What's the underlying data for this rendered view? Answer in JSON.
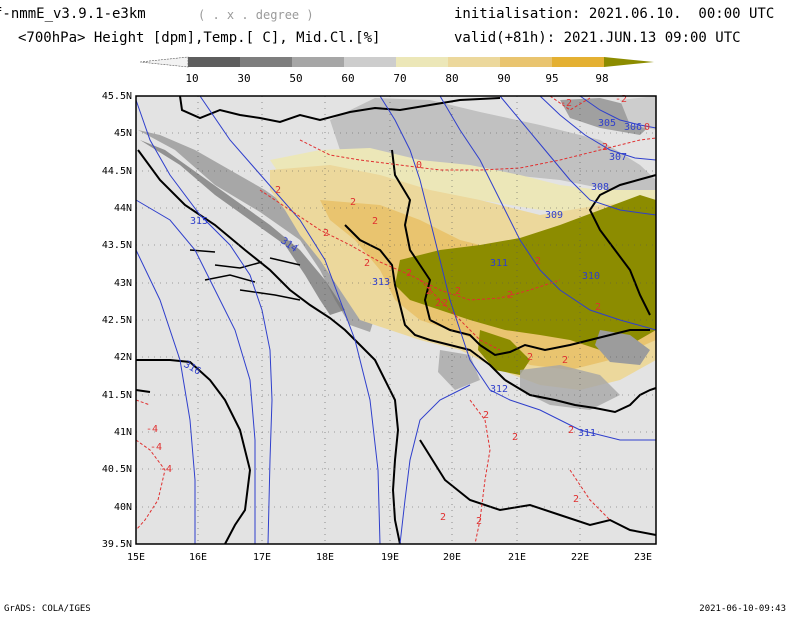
{
  "header": {
    "model": "f-nmmE_v3.9.1-e3km",
    "units": "( . x . degree )",
    "variables": "<700hPa> Height [dpm],Temp.[ C], Mid.Cl.[%]",
    "initialisation": "initialisation: 2021.06.10.  00:00 UTC",
    "valid": "valid(+81h): 2021.JUN.13 09:00 UTC"
  },
  "colorbar": {
    "ticks": [
      "10",
      "30",
      "50",
      "60",
      "70",
      "80",
      "90",
      "95",
      "98"
    ],
    "colors": [
      "#f2f2f2",
      "#5e5e5e",
      "#7e7e7e",
      "#a6a6a6",
      "#cdcdcd",
      "#ece7b8",
      "#ecd89c",
      "#e9c46f",
      "#e4b032",
      "#8c8c00"
    ]
  },
  "map": {
    "lat_labels": [
      "45.5N",
      "45N",
      "44.5N",
      "44N",
      "43.5N",
      "43N",
      "42.5N",
      "42N",
      "41.5N",
      "41N",
      "40.5N",
      "40N",
      "39.5N"
    ],
    "lon_labels": [
      "15E",
      "16E",
      "17E",
      "18E",
      "19E",
      "20E",
      "21E",
      "22E",
      "23E"
    ],
    "height_labels": [
      "305",
      "306",
      "307",
      "308",
      "309",
      "310",
      "311",
      "312",
      "313",
      "314",
      "315",
      "316",
      "311"
    ],
    "temp_labels": [
      "-2",
      "-2",
      "0",
      "0",
      "-2",
      "2",
      "2",
      "2",
      "2",
      "2",
      "2",
      "2",
      "2",
      "2",
      "2",
      "2",
      "2",
      "2",
      "2",
      "2",
      "2",
      "2",
      "2",
      "2",
      "2",
      "2",
      "-4",
      "-4",
      "-4"
    ],
    "colors": {
      "land": "#e3e3e3",
      "sea": "#e3e3e3",
      "height": "#2f3fcc",
      "temp": "#e03030",
      "border": "#000000",
      "high": "#8c8c00"
    }
  },
  "footer": {
    "left": "GrADS: COLA/IGES",
    "right": "2021-06-10-09:43"
  }
}
